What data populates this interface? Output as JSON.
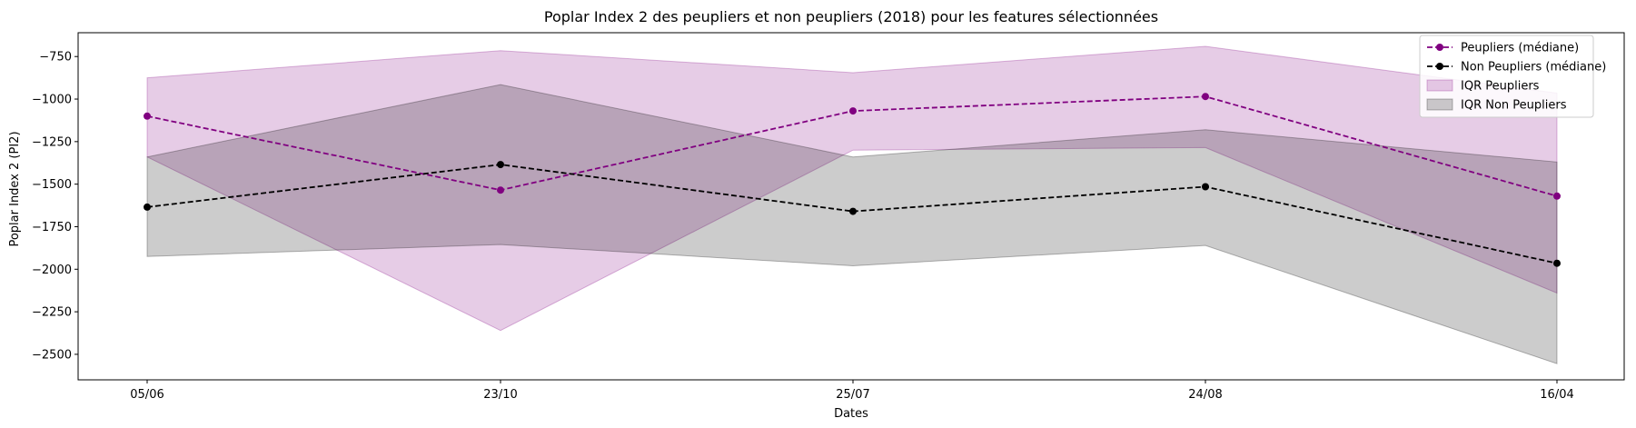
{
  "chart_data": {
    "type": "line",
    "title": "Poplar Index 2 des peupliers et non peupliers (2018) pour les features sélectionnées",
    "xlabel": "Dates",
    "ylabel": "Poplar Index 2 (PI2)",
    "categories": [
      "05/06",
      "23/10",
      "25/07",
      "24/08",
      "16/04"
    ],
    "ylim": [
      -2650,
      -610
    ],
    "yticks": [
      -750,
      -1000,
      -1250,
      -1500,
      -1750,
      -2000,
      -2250,
      -2500
    ],
    "ytick_labels": [
      "−750",
      "−1000",
      "−1250",
      "−1500",
      "−1750",
      "−2000",
      "−2250",
      "−2500"
    ],
    "grid": false,
    "legend_position": "top-right",
    "series": [
      {
        "name": "Peupliers (médiane)",
        "values": [
          -1100,
          -1535,
          -1070,
          -985,
          -1570
        ],
        "color": "#800080",
        "style": "dashed",
        "marker": "circle"
      },
      {
        "name": "Non Peupliers (médiane)",
        "values": [
          -1635,
          -1385,
          -1660,
          -1515,
          -1965
        ],
        "color": "#000000",
        "style": "dashed",
        "marker": "circle"
      }
    ],
    "bands": [
      {
        "name": "IQR Peupliers",
        "lower": [
          -1340,
          -2360,
          -1300,
          -1285,
          -2140
        ],
        "upper": [
          -875,
          -715,
          -845,
          -690,
          -965
        ],
        "color": "#800080",
        "opacity": 0.2
      },
      {
        "name": "IQR Non Peupliers",
        "lower": [
          -1925,
          -1855,
          -1980,
          -1860,
          -2555
        ],
        "upper": [
          -1340,
          -915,
          -1340,
          -1180,
          -1370
        ],
        "color": "#000000",
        "opacity": 0.2
      }
    ]
  }
}
